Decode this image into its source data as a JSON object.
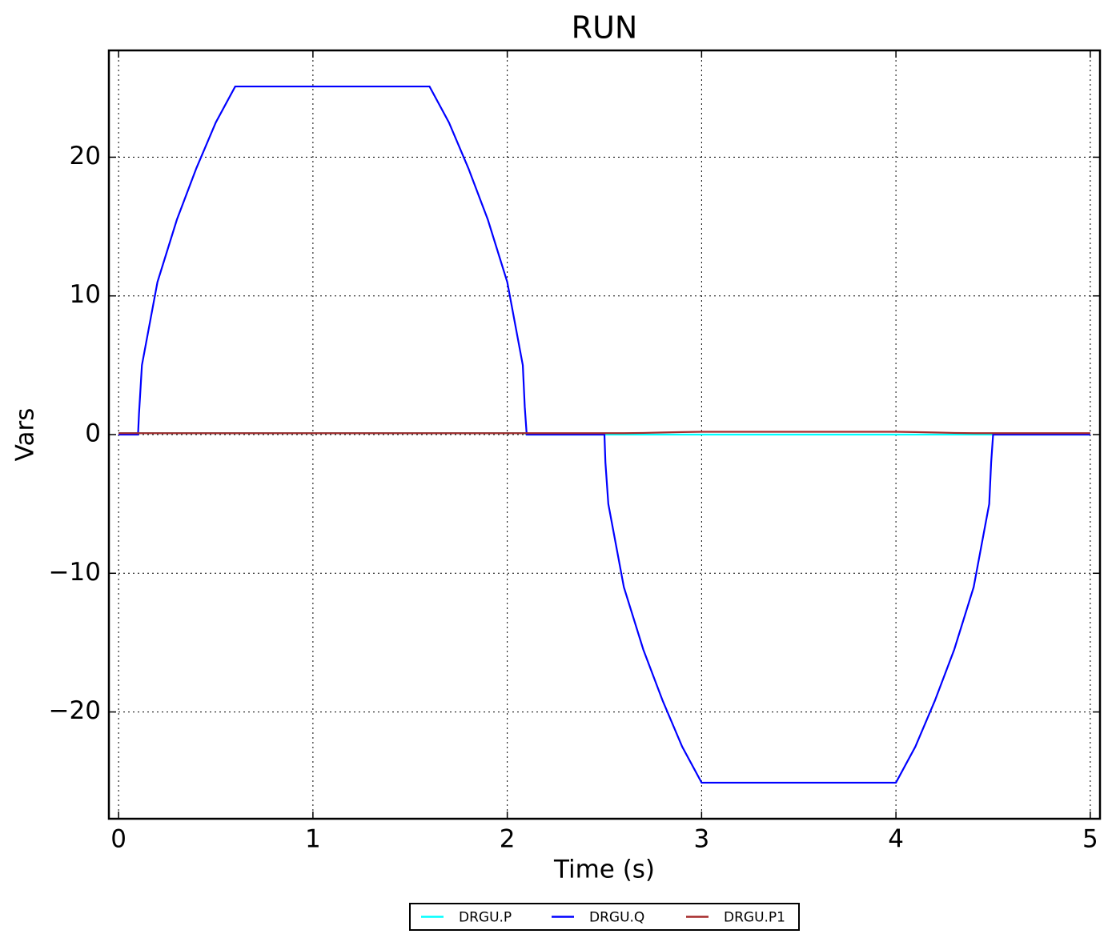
{
  "chart_data": {
    "type": "line",
    "title": "RUN",
    "x_label": "Time (s)",
    "y_label": "Vars",
    "x": [
      0,
      0.1,
      0.105,
      0.12,
      0.2,
      0.3,
      0.4,
      0.5,
      0.6,
      1.6,
      1.7,
      1.8,
      1.9,
      2.0,
      2.08,
      2.09,
      2.1,
      2.5,
      2.505,
      2.52,
      2.6,
      2.7,
      2.8,
      2.9,
      3.0,
      4.0,
      4.1,
      4.2,
      4.3,
      4.4,
      4.48,
      4.49,
      4.5,
      5
    ],
    "series": [
      {
        "name": "DRGU.P",
        "color": "#00ffff",
        "values": [
          0.1,
          0.1,
          0.1,
          0.1,
          0.1,
          0.1,
          0.1,
          0.1,
          0.1,
          0.1,
          0.1,
          0.1,
          0.1,
          0.1,
          0.1,
          0.1,
          0,
          0,
          0,
          0,
          0,
          0,
          0,
          0,
          0,
          0,
          0,
          0,
          0,
          0,
          0,
          0,
          0,
          0
        ]
      },
      {
        "name": "DRGU.Q",
        "color": "#0000ff",
        "values": [
          0,
          0,
          1.5,
          5,
          11,
          15.5,
          19.2,
          22.5,
          25.1,
          25.1,
          22.5,
          19.2,
          15.5,
          11,
          5,
          2,
          0,
          0,
          -2,
          -5,
          -11,
          -15.5,
          -19.2,
          -22.5,
          -25.1,
          -25.1,
          -22.5,
          -19.2,
          -15.5,
          -11,
          -5,
          -2,
          0,
          0
        ]
      },
      {
        "name": "DRGU.P1",
        "color": "#a52a2a",
        "values": [
          0.1,
          0.1,
          0.1,
          0.1,
          0.1,
          0.1,
          0.1,
          0.1,
          0.1,
          0.1,
          0.1,
          0.1,
          0.1,
          0.1,
          0.1,
          0.1,
          0.1,
          0.1,
          0.1,
          0.1,
          0.1,
          0.12,
          0.15,
          0.18,
          0.2,
          0.2,
          0.18,
          0.15,
          0.12,
          0.1,
          0.1,
          0.1,
          0.1,
          0.1
        ]
      }
    ],
    "xlim": [
      -0.05,
      5.05
    ],
    "ylim": [
      -27.7,
      27.7
    ],
    "xticks": [
      0,
      1,
      2,
      3,
      4,
      5
    ],
    "yticks": [
      {
        "value": -20,
        "label": "−20"
      },
      {
        "value": -10,
        "label": "−10"
      },
      0,
      10,
      20
    ],
    "grid": true,
    "legend": "below"
  }
}
